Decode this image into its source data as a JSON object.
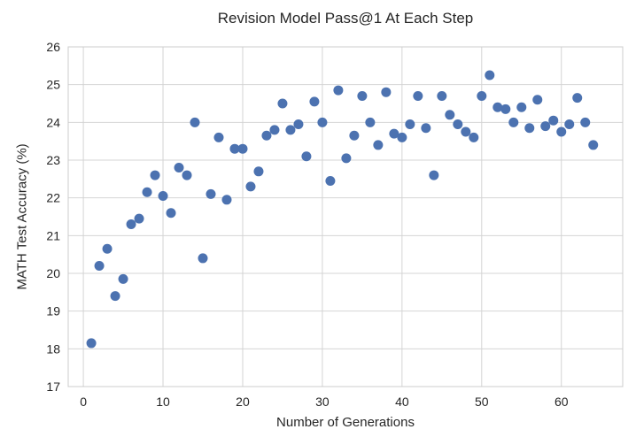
{
  "chart_data": {
    "type": "scatter",
    "title": "Revision Model Pass@1 At Each Step",
    "xlabel": "Number of Generations",
    "ylabel": "MATH Test Accuracy (%)",
    "xlim": [
      -1.9,
      67.7
    ],
    "ylim": [
      17,
      26
    ],
    "xticks": [
      0,
      10,
      20,
      30,
      40,
      50,
      60
    ],
    "yticks": [
      17,
      18,
      19,
      20,
      21,
      22,
      23,
      24,
      25,
      26
    ],
    "grid": true,
    "legend": false,
    "marker_color": "#4C72B0",
    "grid_color": "#d4d4d4",
    "spine_color": "#cccccc",
    "text_color": "#262626",
    "background_color": "#ffffff",
    "marker_radius_px": 5.5,
    "points": [
      [
        1,
        18.15
      ],
      [
        2,
        20.2
      ],
      [
        3,
        20.65
      ],
      [
        4,
        19.4
      ],
      [
        5,
        19.85
      ],
      [
        6,
        21.3
      ],
      [
        7,
        21.45
      ],
      [
        8,
        22.15
      ],
      [
        9,
        22.6
      ],
      [
        10,
        22.05
      ],
      [
        11,
        21.6
      ],
      [
        12,
        22.8
      ],
      [
        13,
        22.6
      ],
      [
        14,
        24.0
      ],
      [
        15,
        20.4
      ],
      [
        16,
        22.1
      ],
      [
        17,
        23.6
      ],
      [
        18,
        21.95
      ],
      [
        19,
        23.3
      ],
      [
        20,
        23.3
      ],
      [
        21,
        22.3
      ],
      [
        22,
        22.7
      ],
      [
        23,
        23.65
      ],
      [
        24,
        23.8
      ],
      [
        25,
        24.5
      ],
      [
        26,
        23.8
      ],
      [
        27,
        23.95
      ],
      [
        28,
        23.1
      ],
      [
        29,
        24.55
      ],
      [
        30,
        24.0
      ],
      [
        31,
        22.45
      ],
      [
        32,
        24.85
      ],
      [
        33,
        23.05
      ],
      [
        34,
        23.65
      ],
      [
        35,
        24.7
      ],
      [
        36,
        24.0
      ],
      [
        37,
        23.4
      ],
      [
        38,
        24.8
      ],
      [
        39,
        23.7
      ],
      [
        40,
        23.6
      ],
      [
        41,
        23.95
      ],
      [
        42,
        24.7
      ],
      [
        43,
        23.85
      ],
      [
        44,
        22.6
      ],
      [
        45,
        24.7
      ],
      [
        46,
        24.2
      ],
      [
        47,
        23.95
      ],
      [
        48,
        23.75
      ],
      [
        49,
        23.6
      ],
      [
        50,
        24.7
      ],
      [
        51,
        25.25
      ],
      [
        52,
        24.4
      ],
      [
        53,
        24.35
      ],
      [
        54,
        24.0
      ],
      [
        55,
        24.4
      ],
      [
        56,
        23.85
      ],
      [
        57,
        24.6
      ],
      [
        58,
        23.9
      ],
      [
        59,
        24.05
      ],
      [
        60,
        23.75
      ],
      [
        61,
        23.95
      ],
      [
        62,
        24.65
      ],
      [
        63,
        24.0
      ],
      [
        64,
        23.4
      ]
    ]
  }
}
